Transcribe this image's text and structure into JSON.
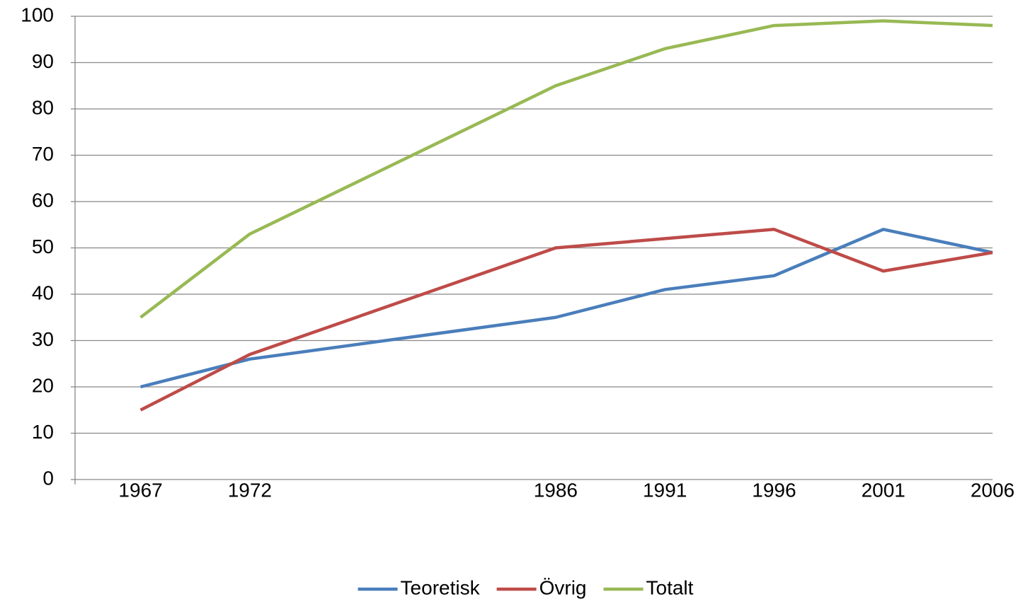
{
  "chart_data": {
    "type": "line",
    "x": [
      1967,
      1972,
      1986,
      1991,
      1996,
      2001,
      2006
    ],
    "series": [
      {
        "name": "Teoretisk",
        "color": "#4a7ebb",
        "values": [
          20,
          26,
          35,
          41,
          44,
          54,
          49
        ]
      },
      {
        "name": "Övrig",
        "color": "#be4b48",
        "values": [
          15,
          27,
          50,
          52,
          54,
          45,
          49
        ]
      },
      {
        "name": "Totalt",
        "color": "#98b954",
        "values": [
          35,
          53,
          85,
          93,
          98,
          99,
          98
        ]
      }
    ],
    "xlim": [
      1964,
      2006
    ],
    "xticks": [
      1967,
      1972,
      1986,
      1991,
      1996,
      2001,
      2006
    ],
    "ylim": [
      0,
      100
    ],
    "yticks": [
      0,
      10,
      20,
      30,
      40,
      50,
      60,
      70,
      80,
      90,
      100
    ],
    "grid": true,
    "legend": "bottom"
  }
}
